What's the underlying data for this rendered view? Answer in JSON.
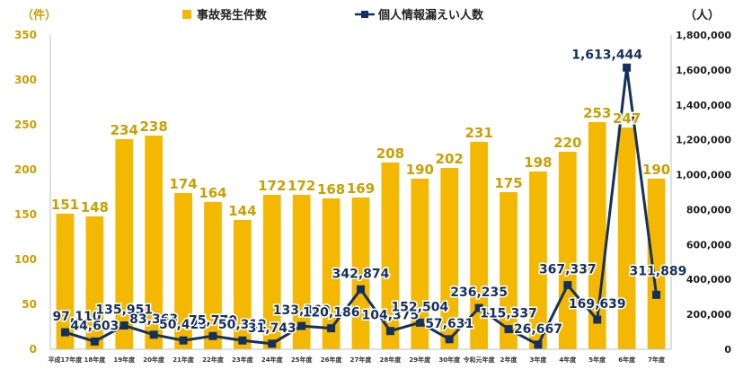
{
  "chart_data": {
    "type": "bar",
    "x_categories": [
      "平成17年度",
      "18年度",
      "19年度",
      "20年度",
      "21年度",
      "22年度",
      "23年度",
      "24年度",
      "25年度",
      "26年度",
      "27年度",
      "28年度",
      "29年度",
      "30年度",
      "令和元年度",
      "2年度",
      "3年度",
      "4年度",
      "5年度",
      "6年度",
      "7年度"
    ],
    "series": [
      {
        "name": "事故発生件数",
        "type": "bar",
        "axis": "left",
        "color": "#f5b800",
        "values": [
          151,
          148,
          234,
          238,
          174,
          164,
          144,
          172,
          172,
          168,
          169,
          208,
          190,
          202,
          231,
          175,
          198,
          220,
          253,
          247,
          190
        ],
        "labels": [
          "151",
          "148",
          "234",
          "238",
          "174",
          "164",
          "144",
          "172",
          "172",
          "168",
          "169",
          "208",
          "190",
          "202",
          "231",
          "175",
          "198",
          "220",
          "253",
          "247",
          "190"
        ]
      },
      {
        "name": "個人情報漏えい人数",
        "type": "line",
        "axis": "right",
        "color": "#14305e",
        "values": [
          97110,
          44603,
          135951,
          83363,
          50423,
          75770,
          50312,
          31743,
          133360,
          120186,
          342874,
          104375,
          152504,
          57631,
          236235,
          115337,
          26667,
          367337,
          169639,
          1613444,
          311889
        ],
        "labels": [
          "97,110",
          "44,603",
          "135,951",
          "83,363",
          "50,423",
          "75,770",
          "50,312",
          "31,743",
          "133,360",
          "120,186",
          "342,874",
          "104,375",
          "152,504",
          "57,631",
          "236,235",
          "115,337",
          "26,667",
          "367,337",
          "169,639",
          "1,613,444",
          "311,889"
        ]
      }
    ],
    "y_left": {
      "unit": "（件）",
      "min": 0,
      "max": 350,
      "ticks": [
        "0",
        "50",
        "100",
        "150",
        "200",
        "250",
        "300",
        "350"
      ],
      "color": "#c9a000"
    },
    "y_right": {
      "unit": "（人）",
      "min": 0,
      "max": 1800000,
      "ticks": [
        "0",
        "200,000",
        "400,000",
        "600,000",
        "800,000",
        "1,000,000",
        "1,200,000",
        "1,400,000",
        "1,600,000",
        "1,800,000"
      ]
    },
    "grid": false,
    "legend_position": "top"
  }
}
